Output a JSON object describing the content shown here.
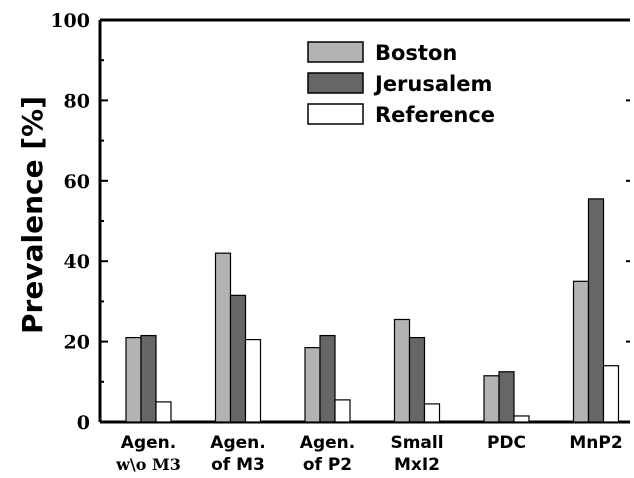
{
  "chart_data": {
    "type": "bar",
    "ylabel": "Prevalence [%]",
    "xlabel": "",
    "ylim": [
      0,
      100
    ],
    "yticks": [
      0,
      20,
      40,
      60,
      80,
      100
    ],
    "grid": false,
    "legend_position": "top-center",
    "categories": [
      [
        "Agen.",
        "w\\o M3"
      ],
      [
        "Agen.",
        "of M3"
      ],
      [
        "Agen.",
        "of P2"
      ],
      [
        "Small",
        "MxI2"
      ],
      [
        "PDC"
      ],
      [
        "MnP2"
      ]
    ],
    "series": [
      {
        "name": "Boston",
        "color": "#b3b3b3",
        "values": [
          21,
          42,
          18.5,
          25.5,
          11.5,
          35
        ]
      },
      {
        "name": "Jerusalem",
        "color": "#666666",
        "values": [
          21.5,
          31.5,
          21.5,
          21,
          12.5,
          55.5
        ]
      },
      {
        "name": "Reference",
        "color": "#ffffff",
        "values": [
          5,
          20.5,
          5.5,
          4.5,
          1.5,
          14
        ]
      }
    ]
  }
}
